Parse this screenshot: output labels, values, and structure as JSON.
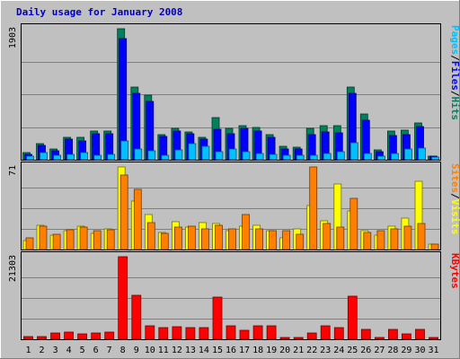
{
  "chart_data": {
    "type": "bar",
    "title": "Daily usage for January 2008",
    "days": [
      "1",
      "2",
      "3",
      "4",
      "5",
      "6",
      "7",
      "8",
      "9",
      "10",
      "11",
      "12",
      "13",
      "14",
      "15",
      "16",
      "17",
      "18",
      "19",
      "20",
      "21",
      "22",
      "23",
      "24",
      "25",
      "26",
      "27",
      "28",
      "29",
      "30",
      "31"
    ],
    "weekend_days": [
      "5",
      "6",
      "12",
      "13",
      "19",
      "20",
      "26",
      "27"
    ],
    "colors": {
      "hits": "#00805c",
      "files": "#0000ff",
      "pages": "#00c0ff",
      "visits": "#ffff00",
      "sites": "#ff8000",
      "kbytes": "#ff0000",
      "weekend_label": "#008040",
      "weekday_label": "#000000",
      "title": "#0000c0"
    },
    "panels": [
      {
        "name": "hits-files-pages",
        "ymax_label": "1903",
        "ymax": 1903,
        "legend": [
          {
            "label": "Hits",
            "color": "#00805c"
          },
          {
            "label": "/",
            "color": "#000000"
          },
          {
            "label": "Files",
            "color": "#0000ff"
          },
          {
            "label": "/",
            "color": "#000000"
          },
          {
            "label": "Pages",
            "color": "#00c0ff"
          }
        ],
        "series": [
          {
            "name": "Hits",
            "color": "#00805c",
            "values": [
              110,
              230,
              150,
              330,
              330,
              420,
              420,
              1903,
              1060,
              940,
              370,
              450,
              410,
              330,
              610,
              450,
              500,
              470,
              370,
              190,
              180,
              460,
              500,
              500,
              1050,
              660,
              140,
              420,
              430,
              540,
              55
            ]
          },
          {
            "name": "Files",
            "color": "#0000ff",
            "values": [
              80,
              210,
              130,
              300,
              280,
              380,
              380,
              1760,
              960,
              850,
              340,
              420,
              380,
              300,
              440,
              380,
              460,
              420,
              330,
              160,
              150,
              370,
              410,
              390,
              960,
              580,
              120,
              350,
              370,
              480,
              50
            ]
          },
          {
            "name": "Pages",
            "color": "#00c0ff",
            "values": [
              55,
              110,
              60,
              80,
              110,
              70,
              80,
              280,
              150,
              130,
              60,
              140,
              230,
              200,
              120,
              160,
              120,
              90,
              80,
              70,
              60,
              70,
              90,
              120,
              250,
              90,
              50,
              90,
              150,
              170,
              40
            ]
          }
        ]
      },
      {
        "name": "visits-sites",
        "ymax_label": "71",
        "ymax": 71,
        "legend": [
          {
            "label": "Visits",
            "color": "#ffff00"
          },
          {
            "label": "/",
            "color": "#000000"
          },
          {
            "label": "Sites",
            "color": "#ff8000"
          }
        ],
        "series": [
          {
            "name": "Visits",
            "color": "#ffff00",
            "values": [
              8,
              21,
              12,
              16,
              20,
              14,
              18,
              71,
              42,
              30,
              15,
              24,
              19,
              23,
              22,
              16,
              20,
              21,
              16,
              10,
              18,
              38,
              25,
              56,
              33,
              16,
              12,
              20,
              27,
              59,
              5
            ]
          },
          {
            "name": "Sites",
            "color": "#ff8000",
            "values": [
              10,
              20,
              13,
              17,
              19,
              16,
              17,
              64,
              52,
              23,
              14,
              19,
              20,
              18,
              21,
              18,
              30,
              18,
              16,
              16,
              13,
              71,
              22,
              19,
              44,
              15,
              16,
              18,
              20,
              22,
              5
            ]
          }
        ]
      },
      {
        "name": "kbytes",
        "ymax_label": "21303",
        "ymax": 21303,
        "legend": [
          {
            "label": "KBytes",
            "color": "#ff0000"
          }
        ],
        "series": [
          {
            "name": "KBytes",
            "color": "#ff0000",
            "values": [
              700,
              700,
              1700,
              1900,
              1500,
              1600,
              1900,
              21303,
              11300,
              3500,
              2900,
              3200,
              2900,
              2900,
              10800,
              3400,
              2300,
              3500,
              3500,
              500,
              500,
              1700,
              3400,
              2900,
              11000,
              2500,
              500,
              2600,
              1400,
              2600,
              500
            ]
          }
        ]
      }
    ]
  }
}
